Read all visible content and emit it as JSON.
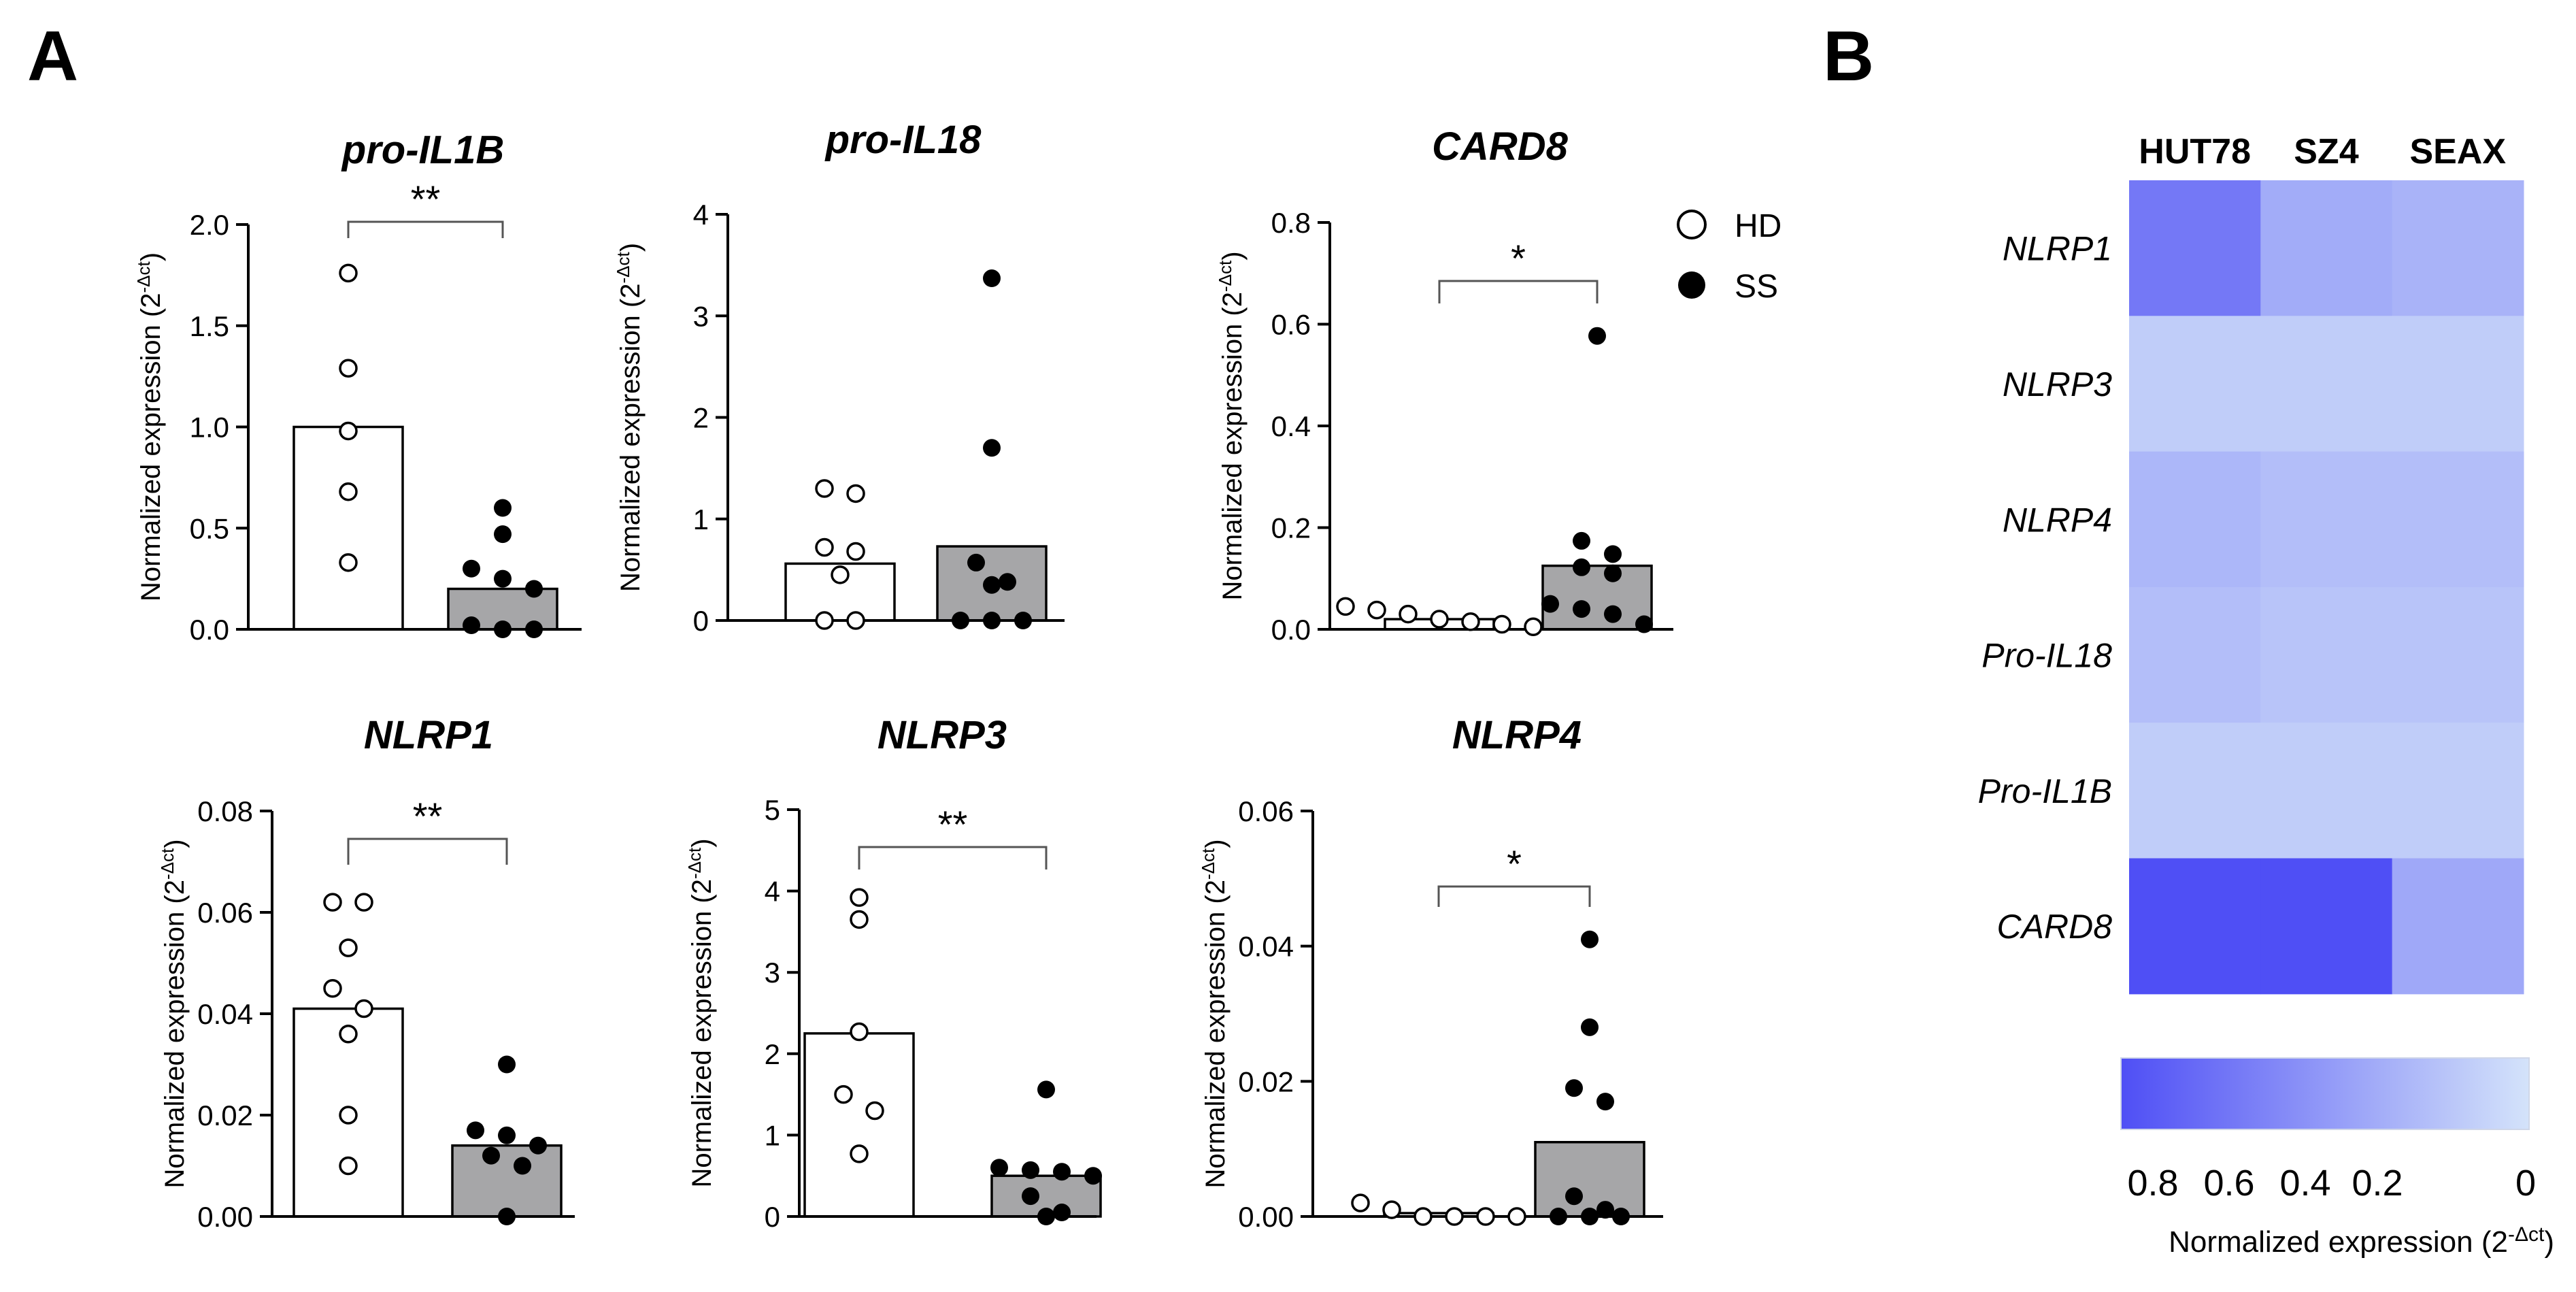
{
  "panel_labels": {
    "a": "A",
    "b": "B"
  },
  "legend": {
    "items": [
      {
        "label": "HD",
        "marker": "open-circle"
      },
      {
        "label": "SS",
        "marker": "filled-circle"
      }
    ]
  },
  "y_axis_label": "Normalized expression (2",
  "y_axis_label_sup": "-Δct",
  "y_axis_label_close": ")",
  "colors": {
    "hd_bar": "#ffffff",
    "ss_bar": "#a6a6a8",
    "axis": "#000000",
    "bracket": "#555555",
    "heat_high": "#4f4ff5",
    "heat_low": "#d4e3fa"
  },
  "chart_data": [
    {
      "type": "bar",
      "title": "pro-IL1B",
      "categories": [
        "HD",
        "SS"
      ],
      "ylim": [
        0,
        2.0
      ],
      "yticks": [
        0.0,
        0.5,
        1.0,
        1.5,
        2.0
      ],
      "ytick_labels": [
        "0.0",
        "0.5",
        "1.0",
        "1.5",
        "2.0"
      ],
      "series": [
        {
          "name": "HD",
          "mean": 1.0,
          "points": [
            1.76,
            1.29,
            0.98,
            0.68,
            0.33
          ]
        },
        {
          "name": "SS",
          "mean": 0.2,
          "points": [
            0.6,
            0.47,
            0.3,
            0.25,
            0.2,
            0.0,
            0.02,
            0.0
          ]
        }
      ],
      "significance": "**"
    },
    {
      "type": "bar",
      "title": "pro-IL18",
      "categories": [
        "HD",
        "SS"
      ],
      "ylim": [
        0,
        4
      ],
      "yticks": [
        0,
        1,
        2,
        3,
        4
      ],
      "ytick_labels": [
        "0",
        "1",
        "2",
        "3",
        "4"
      ],
      "series": [
        {
          "name": "HD",
          "mean": 0.56,
          "points": [
            1.3,
            1.25,
            0.72,
            0.68,
            0.45,
            0.0,
            0.0
          ]
        },
        {
          "name": "SS",
          "mean": 0.73,
          "points": [
            3.37,
            1.7,
            0.57,
            0.38,
            0.35,
            0.0,
            0.0,
            0.0
          ]
        }
      ],
      "significance": ""
    },
    {
      "type": "bar",
      "title": "CARD8",
      "categories": [
        "HD",
        "SS"
      ],
      "ylim": [
        0,
        0.8
      ],
      "yticks": [
        0.0,
        0.2,
        0.4,
        0.6,
        0.8
      ],
      "ytick_labels": [
        "0.0",
        "0.2",
        "0.4",
        "0.6",
        "0.8"
      ],
      "series": [
        {
          "name": "HD",
          "mean": 0.02,
          "points": [
            0.045,
            0.038,
            0.03,
            0.02,
            0.015,
            0.01,
            0.005
          ]
        },
        {
          "name": "SS",
          "mean": 0.125,
          "points": [
            0.577,
            0.174,
            0.148,
            0.122,
            0.11,
            0.05,
            0.04,
            0.03,
            0.01
          ]
        }
      ],
      "significance": "*"
    },
    {
      "type": "bar",
      "title": "NLRP1",
      "categories": [
        "HD",
        "SS"
      ],
      "ylim": [
        0,
        0.08
      ],
      "yticks": [
        0.0,
        0.02,
        0.04,
        0.06,
        0.08
      ],
      "ytick_labels": [
        "0.00",
        "0.02",
        "0.04",
        "0.06",
        "0.08"
      ],
      "series": [
        {
          "name": "HD",
          "mean": 0.041,
          "points": [
            0.062,
            0.062,
            0.053,
            0.045,
            0.041,
            0.036,
            0.02,
            0.01
          ]
        },
        {
          "name": "SS",
          "mean": 0.014,
          "points": [
            0.03,
            0.017,
            0.016,
            0.014,
            0.012,
            0.01,
            0.0
          ]
        }
      ],
      "significance": "**"
    },
    {
      "type": "bar",
      "title": "NLRP3",
      "categories": [
        "HD",
        "SS"
      ],
      "ylim": [
        0,
        5
      ],
      "yticks": [
        0,
        1,
        2,
        3,
        4,
        5
      ],
      "ytick_labels": [
        "0",
        "1",
        "2",
        "3",
        "4",
        "5"
      ],
      "series": [
        {
          "name": "HD",
          "mean": 2.25,
          "points": [
            3.92,
            3.65,
            2.27,
            1.5,
            1.3,
            0.77
          ]
        },
        {
          "name": "SS",
          "mean": 0.5,
          "points": [
            1.56,
            0.6,
            0.57,
            0.55,
            0.5,
            0.25,
            0.05,
            0.0
          ]
        }
      ],
      "significance": "**"
    },
    {
      "type": "bar",
      "title": "NLRP4",
      "categories": [
        "HD",
        "SS"
      ],
      "ylim": [
        0,
        0.06
      ],
      "yticks": [
        0.0,
        0.02,
        0.04,
        0.06
      ],
      "ytick_labels": [
        "0.00",
        "0.02",
        "0.04",
        "0.06"
      ],
      "series": [
        {
          "name": "HD",
          "mean": 0.0005,
          "points": [
            0.002,
            0.001,
            0.0,
            0.0,
            0.0,
            0.0
          ]
        },
        {
          "name": "SS",
          "mean": 0.011,
          "points": [
            0.041,
            0.028,
            0.019,
            0.017,
            0.003,
            0.001,
            0.0,
            0.0,
            0.0
          ]
        }
      ],
      "significance": "*"
    },
    {
      "type": "heatmap",
      "columns": [
        "HUT78",
        "SZ4",
        "SEAX"
      ],
      "rows": [
        "NLRP1",
        "NLRP3",
        "NLRP4",
        "Pro-IL18",
        "Pro-IL1B",
        "CARD8"
      ],
      "values": [
        [
          0.58,
          0.3,
          0.26
        ],
        [
          0.12,
          0.12,
          0.12
        ],
        [
          0.24,
          0.2,
          0.2
        ],
        [
          0.2,
          0.17,
          0.17
        ],
        [
          0.12,
          0.12,
          0.12
        ],
        [
          0.92,
          0.95,
          0.32
        ]
      ],
      "colorbar": {
        "range": [
          0.8,
          0
        ],
        "tick_labels": [
          "0.8",
          "0.6",
          "0.4",
          "0.2",
          "0"
        ],
        "label": "Normalized expression (2",
        "label_sup": "-Δct",
        "label_close": ")"
      }
    }
  ]
}
